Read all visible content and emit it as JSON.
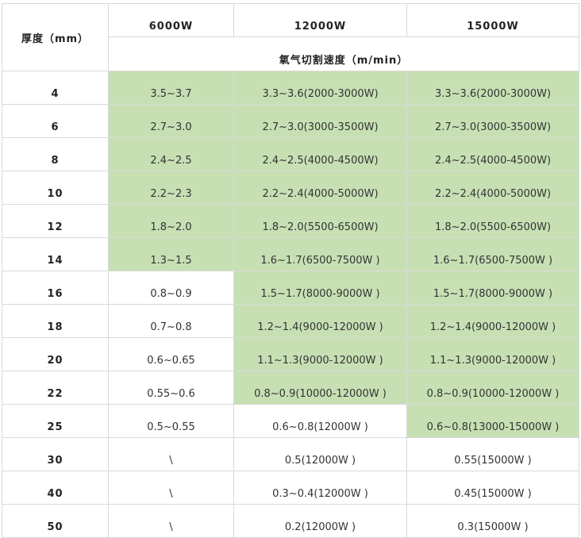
{
  "header": {
    "thickness_label": "厚度（mm）",
    "powers": [
      "6000W",
      "12000W",
      "15000W"
    ],
    "speed_label": "氧气切割速度（m/min）"
  },
  "highlight_color": "#c6e0b4",
  "rows": [
    {
      "t": "4",
      "v": [
        "3.5~3.7",
        "3.3~3.6(2000-3000W)",
        "3.3~3.6(2000-3000W)"
      ],
      "green": [
        true,
        true,
        true
      ]
    },
    {
      "t": "6",
      "v": [
        "2.7~3.0",
        "2.7~3.0(3000-3500W)",
        "2.7~3.0(3000-3500W)"
      ],
      "green": [
        true,
        true,
        true
      ]
    },
    {
      "t": "8",
      "v": [
        "2.4~2.5",
        "2.4~2.5(4000-4500W)",
        "2.4~2.5(4000-4500W)"
      ],
      "green": [
        true,
        true,
        true
      ]
    },
    {
      "t": "10",
      "v": [
        "2.2~2.3",
        "2.2~2.4(4000-5000W)",
        "2.2~2.4(4000-5000W)"
      ],
      "green": [
        true,
        true,
        true
      ]
    },
    {
      "t": "12",
      "v": [
        "1.8~2.0",
        "1.8~2.0(5500-6500W)",
        "1.8~2.0(5500-6500W)"
      ],
      "green": [
        true,
        true,
        true
      ]
    },
    {
      "t": "14",
      "v": [
        "1.3~1.5",
        "1.6~1.7(6500-7500W )",
        "1.6~1.7(6500-7500W )"
      ],
      "green": [
        true,
        true,
        true
      ]
    },
    {
      "t": "16",
      "v": [
        "0.8~0.9",
        "1.5~1.7(8000-9000W )",
        "1.5~1.7(8000-9000W )"
      ],
      "green": [
        false,
        true,
        true
      ]
    },
    {
      "t": "18",
      "v": [
        "0.7~0.8",
        "1.2~1.4(9000-12000W )",
        "1.2~1.4(9000-12000W )"
      ],
      "green": [
        false,
        true,
        true
      ]
    },
    {
      "t": "20",
      "v": [
        "0.6~0.65",
        "1.1~1.3(9000-12000W )",
        "1.1~1.3(9000-12000W )"
      ],
      "green": [
        false,
        true,
        true
      ]
    },
    {
      "t": "22",
      "v": [
        "0.55~0.6",
        "0.8~0.9(10000-12000W )",
        "0.8~0.9(10000-12000W )"
      ],
      "green": [
        false,
        true,
        true
      ]
    },
    {
      "t": "25",
      "v": [
        "0.5~0.55",
        "0.6~0.8(12000W )",
        "0.6~0.8(13000-15000W )"
      ],
      "green": [
        false,
        false,
        true
      ]
    },
    {
      "t": "30",
      "v": [
        "\\",
        "0.5(12000W )",
        "0.55(15000W )"
      ],
      "green": [
        false,
        false,
        false
      ]
    },
    {
      "t": "40",
      "v": [
        "\\",
        "0.3~0.4(12000W )",
        "0.45(15000W )"
      ],
      "green": [
        false,
        false,
        false
      ]
    },
    {
      "t": "50",
      "v": [
        "\\",
        "0.2(12000W )",
        "0.3(15000W )"
      ],
      "green": [
        false,
        false,
        false
      ]
    }
  ]
}
